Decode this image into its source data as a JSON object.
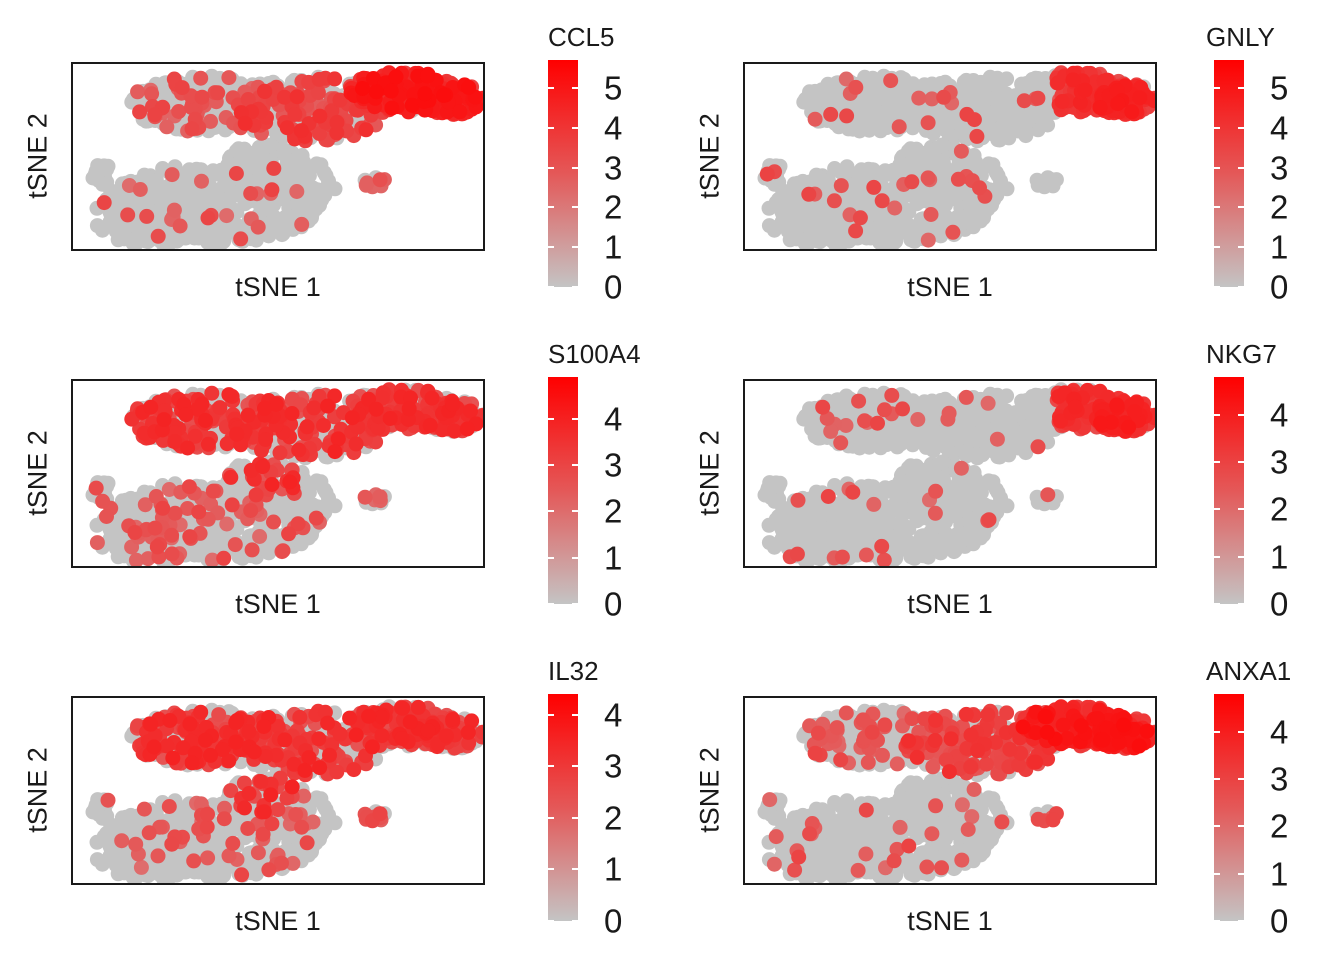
{
  "colors": {
    "low": "#C4C4C4",
    "high": "#FF0000",
    "frame": "#1a1a1a"
  },
  "chart_data": [
    {
      "type": "scatter",
      "gene": "CCL5",
      "xlabel": "tSNE 1",
      "ylabel": "tSNE 2",
      "color_range": [
        0,
        5.7
      ],
      "ticks": [
        0,
        1,
        2,
        3,
        4,
        5
      ],
      "high_region": "top-right",
      "grid": false
    },
    {
      "type": "scatter",
      "gene": "GNLY",
      "xlabel": "tSNE 1",
      "ylabel": "tSNE 2",
      "color_range": [
        0,
        5.7
      ],
      "ticks": [
        0,
        1,
        2,
        3,
        4,
        5
      ],
      "high_region": "far-right",
      "grid": false
    },
    {
      "type": "scatter",
      "gene": "S100A4",
      "xlabel": "tSNE 1",
      "ylabel": "tSNE 2",
      "color_range": [
        0,
        4.9
      ],
      "ticks": [
        0,
        1,
        2,
        3,
        4
      ],
      "high_region": "top",
      "grid": false
    },
    {
      "type": "scatter",
      "gene": "NKG7",
      "xlabel": "tSNE 1",
      "ylabel": "tSNE 2",
      "color_range": [
        0,
        4.8
      ],
      "ticks": [
        0,
        1,
        2,
        3,
        4
      ],
      "high_region": "far-right",
      "grid": false
    },
    {
      "type": "scatter",
      "gene": "IL32",
      "xlabel": "tSNE 1",
      "ylabel": "tSNE 2",
      "color_range": [
        0,
        4.4
      ],
      "ticks": [
        0,
        1,
        2,
        3,
        4
      ],
      "high_region": "top",
      "grid": false
    },
    {
      "type": "scatter",
      "gene": "ANXA1",
      "xlabel": "tSNE 1",
      "ylabel": "tSNE 2",
      "color_range": [
        0,
        4.8
      ],
      "ticks": [
        0,
        1,
        2,
        3,
        4
      ],
      "high_region": "top-right",
      "grid": false
    }
  ]
}
